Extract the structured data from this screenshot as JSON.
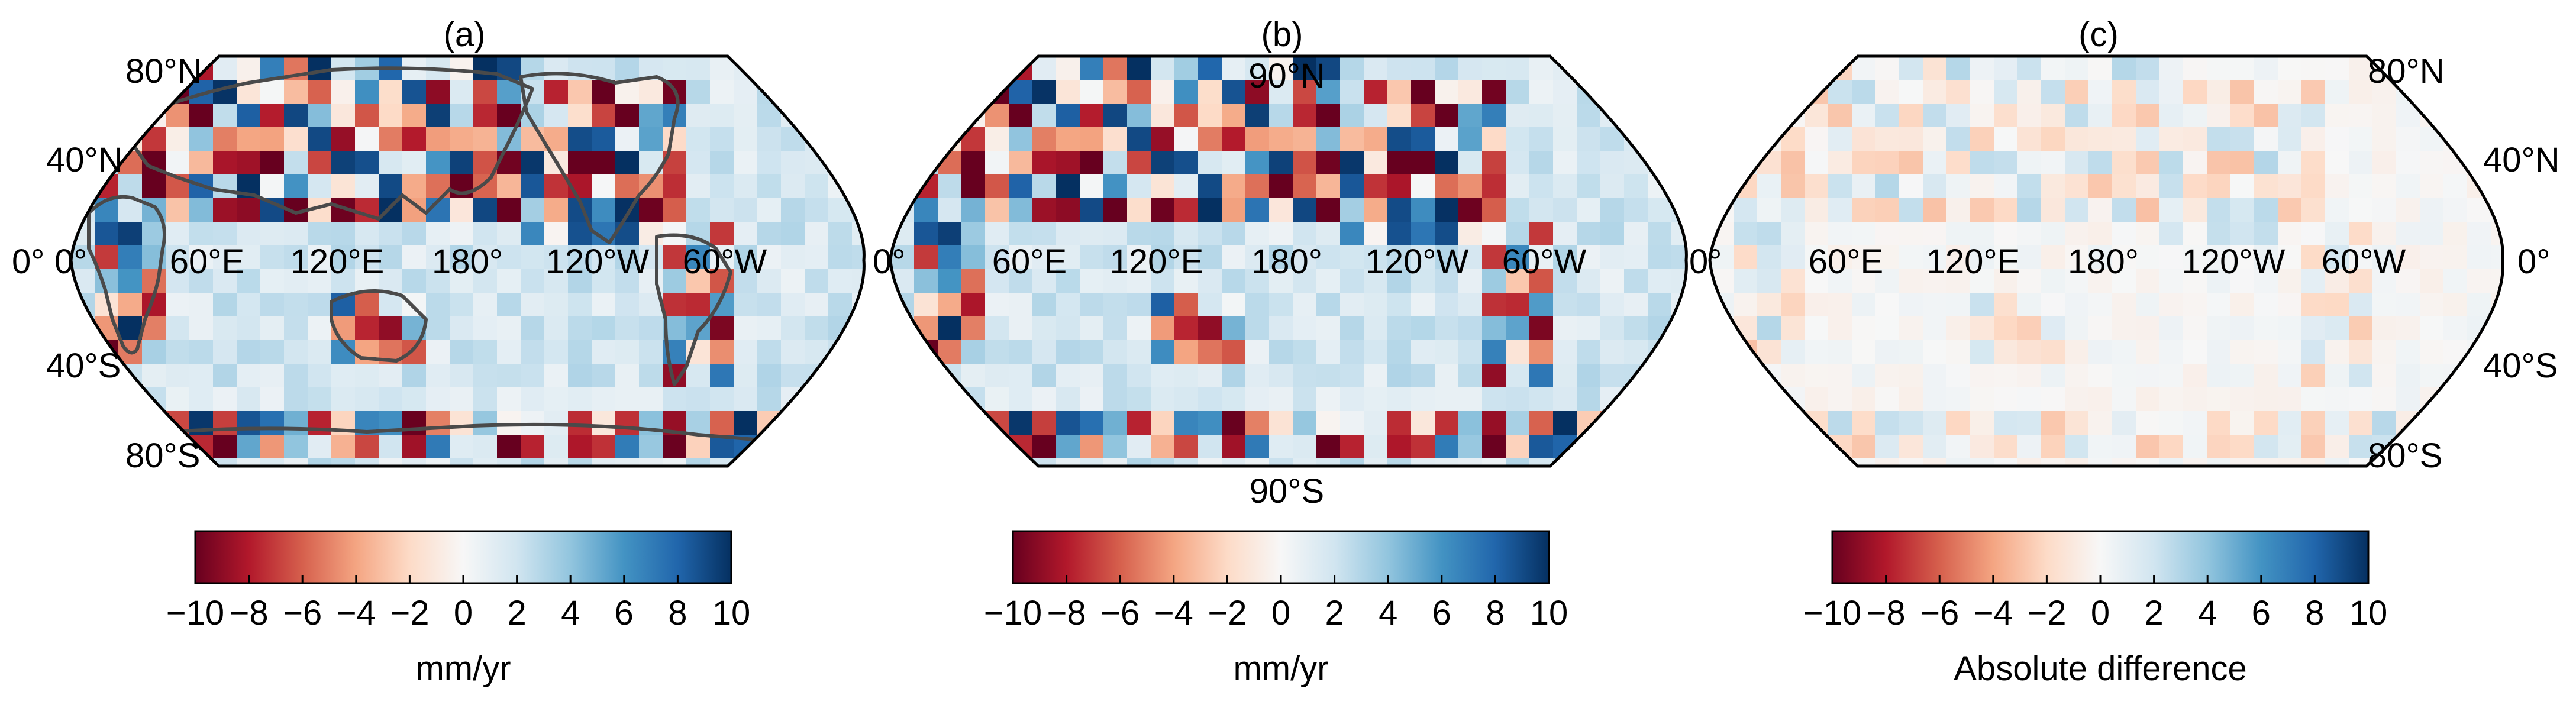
{
  "colorbar": {
    "ticks": [
      "−10",
      "−8",
      "−6",
      "−4",
      "−2",
      "0",
      "2",
      "4",
      "6",
      "8",
      "10"
    ],
    "min": -10,
    "max": 10,
    "colormap": [
      "#67001f",
      "#b2182b",
      "#d6604d",
      "#f4a582",
      "#fddbc7",
      "#f7f7f7",
      "#d1e5f0",
      "#92c5de",
      "#4393c3",
      "#2166ac",
      "#053061"
    ]
  },
  "projection": "Robinson, central meridian 180°",
  "panels": [
    {
      "title": "(a)",
      "colorbar_label": "mm/yr",
      "lat_labels": {
        "n80": "80°N",
        "n40": "40°N",
        "s40": "",
        "s80": "80°S",
        "side": "left",
        "s40_left": "40°S"
      },
      "lon_labels": [
        "0°",
        "0°",
        "60°E",
        "120°E",
        "180°",
        "120°W",
        "60°W"
      ],
      "pole_labels": {
        "north": "",
        "south": ""
      },
      "field": "high-variance"
    },
    {
      "title": "(b)",
      "colorbar_label": "mm/yr",
      "lat_labels": {
        "n80": "",
        "n40": "",
        "s40": "",
        "s80": "",
        "side": "none",
        "s40_left": ""
      },
      "lon_labels": [
        "0°",
        "",
        "60°E",
        "120°E",
        "180°",
        "120°W",
        "60°W"
      ],
      "pole_labels": {
        "north": "90°N",
        "south": "90°S"
      },
      "field": "high-variance"
    },
    {
      "title": "(c)",
      "colorbar_label": "Absolute difference",
      "lat_labels": {
        "n80": "80°N",
        "n40": "40°N",
        "s40": "40°S",
        "s80": "80°S",
        "side": "right",
        "s40_left": ""
      },
      "lon_labels": [
        "0°",
        "",
        "60°E",
        "120°E",
        "180°",
        "120°W",
        "60°W",
        "0°"
      ],
      "pole_labels": {
        "north": "",
        "south": ""
      },
      "field": "low-variance"
    }
  ]
}
